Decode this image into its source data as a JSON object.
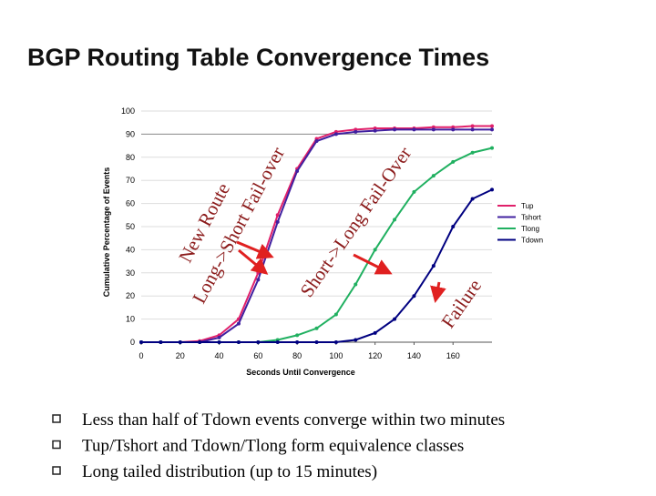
{
  "slide": {
    "title": "BGP Routing Table Convergence Times",
    "bullets": [
      "Less than half of Tdown events converge within two minutes",
      "Tup/Tshort and Tdown/Tlong form equivalence classes",
      "Long tailed distribution (up to 15 minutes)"
    ]
  },
  "chart_data": {
    "type": "line",
    "x_label": "Seconds Until Convergence",
    "y_label": "Cumulative Percentage of Events",
    "x": [
      0,
      10,
      20,
      30,
      40,
      50,
      60,
      70,
      80,
      90,
      100,
      110,
      120,
      130,
      140,
      150,
      160,
      170,
      180
    ],
    "series": [
      {
        "name": "Tup",
        "color": "#e0206a",
        "values": [
          0,
          0,
          0,
          0.5,
          3,
          10,
          30,
          55,
          75,
          88,
          91,
          92,
          92.5,
          92.5,
          92.5,
          93,
          93,
          93.5,
          93.5
        ]
      },
      {
        "name": "Tshort",
        "color": "#4020a0",
        "values": [
          0,
          0,
          0,
          0,
          2,
          8,
          27,
          52,
          74,
          87,
          90,
          91,
          91.5,
          92,
          92,
          92,
          92,
          92,
          92
        ]
      },
      {
        "name": "Tlong",
        "color": "#20b060",
        "values": [
          0,
          0,
          0,
          0,
          0,
          0,
          0,
          1,
          3,
          6,
          12,
          25,
          40,
          53,
          65,
          72,
          78,
          82,
          84
        ]
      },
      {
        "name": "Tdown",
        "color": "#000080",
        "values": [
          0,
          0,
          0,
          0,
          0,
          0,
          0,
          0,
          0,
          0,
          0,
          1,
          4,
          10,
          20,
          33,
          50,
          62,
          66
        ]
      }
    ],
    "xlim": [
      0,
      180
    ],
    "xticks": [
      0,
      20,
      40,
      60,
      80,
      100,
      120,
      140,
      160
    ],
    "ylim": [
      0,
      100
    ],
    "yticks": [
      0,
      10,
      20,
      30,
      40,
      50,
      60,
      70,
      80,
      90,
      100
    ],
    "grid": true,
    "annotations": [
      "New Route",
      "Long->Short Fail-over",
      "Short->Long Fail-Over",
      "Failure"
    ]
  }
}
